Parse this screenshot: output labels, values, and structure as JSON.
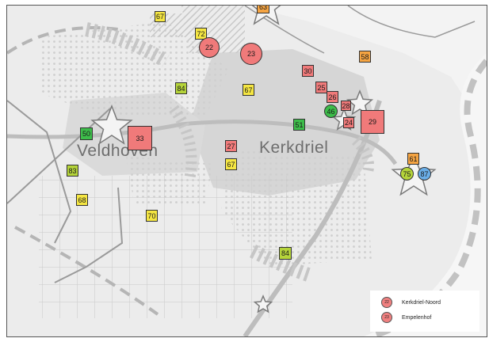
{
  "map": {
    "town_labels": [
      {
        "id": "veldhoven",
        "text": "Veldhoven"
      },
      {
        "id": "kerkdriel",
        "text": "Kerkdriel"
      }
    ],
    "colors": {
      "red": "#f07a7a",
      "yellow": "#f5e642",
      "orange": "#f5a442",
      "lime": "#b5d43a",
      "green": "#3dbd4a",
      "blue": "#6aaee8",
      "map_bg": "#e6e6e6"
    },
    "markers": [
      {
        "label": "67",
        "color": "yellow"
      },
      {
        "label": "72",
        "color": "yellow"
      },
      {
        "label": "22",
        "color": "red"
      },
      {
        "label": "23",
        "color": "red"
      },
      {
        "label": "63",
        "color": "orange"
      },
      {
        "label": "58",
        "color": "orange"
      },
      {
        "label": "84",
        "color": "lime"
      },
      {
        "label": "67",
        "color": "yellow"
      },
      {
        "label": "30",
        "color": "red"
      },
      {
        "label": "25",
        "color": "red"
      },
      {
        "label": "26",
        "color": "red"
      },
      {
        "label": "46",
        "color": "green"
      },
      {
        "label": "28",
        "color": "red"
      },
      {
        "label": "29",
        "color": "red"
      },
      {
        "label": "24",
        "color": "red"
      },
      {
        "label": "51",
        "color": "green"
      },
      {
        "label": "50",
        "color": "green"
      },
      {
        "label": "33",
        "color": "red"
      },
      {
        "label": "27",
        "color": "red"
      },
      {
        "label": "67",
        "color": "yellow"
      },
      {
        "label": "83",
        "color": "lime"
      },
      {
        "label": "68",
        "color": "yellow"
      },
      {
        "label": "70",
        "color": "yellow"
      },
      {
        "label": "61",
        "color": "orange"
      },
      {
        "label": "75",
        "color": "lime"
      },
      {
        "label": "87",
        "color": "blue"
      },
      {
        "label": "84",
        "color": "lime"
      }
    ]
  },
  "legend": {
    "items": [
      {
        "marker_text": "22",
        "label": "Kerkdriel-Noord",
        "color": "#f08080"
      },
      {
        "marker_text": "23",
        "label": "Empelenhof",
        "color": "#f08080"
      }
    ]
  }
}
